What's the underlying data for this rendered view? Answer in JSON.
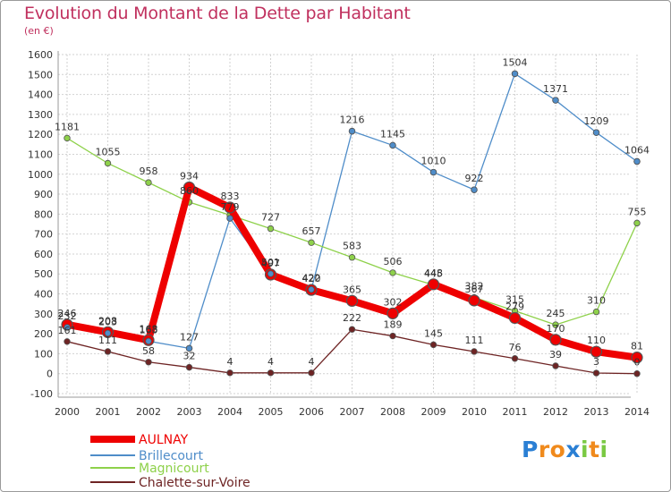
{
  "chart_data": {
    "type": "line",
    "title": "Evolution du Montant de la Dette par Habitant",
    "subtitle": "(en €)",
    "x": [
      "2000",
      "2001",
      "2002",
      "2003",
      "2004",
      "2005",
      "2006",
      "2007",
      "2008",
      "2009",
      "2010",
      "2011",
      "2012",
      "2013",
      "2014"
    ],
    "ylim": [
      -100,
      1600
    ],
    "yticks": [
      -100,
      0,
      100,
      200,
      300,
      400,
      500,
      600,
      700,
      800,
      900,
      1000,
      1100,
      1200,
      1300,
      1400,
      1500,
      1600
    ],
    "grid": true,
    "legend_position": "bottom-left",
    "series": [
      {
        "name": "Brillecourt",
        "color": "#4f8dc9",
        "values": [
          232,
          203,
          163,
          127,
          779,
          501,
          422,
          1216,
          1145,
          1010,
          922,
          1504,
          1371,
          1209,
          1064
        ]
      },
      {
        "name": "Magnicourt",
        "color": "#8ed14a",
        "values": [
          1181,
          1055,
          958,
          860,
          795,
          727,
          657,
          583,
          506,
          445,
          382,
          315,
          245,
          310,
          755
        ]
      },
      {
        "name": "Chalette-sur-Voire",
        "color": "#6e2424",
        "values": [
          161,
          111,
          58,
          32,
          4,
          4,
          4,
          222,
          189,
          145,
          111,
          76,
          39,
          3,
          0
        ]
      },
      {
        "name": "AULNAY",
        "color": "#ee0000",
        "values": [
          246,
          208,
          168,
          934,
          833,
          497,
          420,
          365,
          302,
          448,
          367,
          279,
          170,
          110,
          81
        ]
      }
    ],
    "labels": [
      {
        "series": "AULNAY",
        "text": [
          "246",
          "208",
          "168",
          "934",
          "833",
          "497",
          "420",
          "365",
          "302",
          "448",
          "367",
          "279",
          "170",
          "110",
          "81"
        ]
      },
      {
        "series": "Brillecourt",
        "text": [
          "232",
          "203",
          "163",
          "127",
          "779",
          "501",
          "422",
          "1216",
          "1145",
          "1010",
          "922",
          "1504",
          "1371",
          "1209",
          "1064"
        ]
      },
      {
        "series": "Magnicourt",
        "text": [
          "1181",
          "1055",
          "958",
          "860",
          "",
          "727",
          "657",
          "583",
          "506",
          "445",
          "382",
          "315",
          "245",
          "310",
          "755"
        ]
      },
      {
        "series": "Chalette-sur-Voire",
        "text": [
          "161",
          "111",
          "58",
          "32",
          "4",
          "4",
          "4",
          "222",
          "189",
          "145",
          "111",
          "76",
          "39",
          "3",
          "0"
        ]
      }
    ],
    "legend": [
      "AULNAY",
      "Brillecourt",
      "Magnicourt",
      "Chalette-sur-Voire"
    ]
  },
  "logo": {
    "letters": [
      "P",
      "r",
      "o",
      "x",
      "i",
      "t",
      "i"
    ],
    "colors": [
      "#2a7fd4",
      "#f08a1c",
      "#f08a1c",
      "#2a7fd4",
      "#7ac943",
      "#f08a1c",
      "#7ac943"
    ]
  }
}
